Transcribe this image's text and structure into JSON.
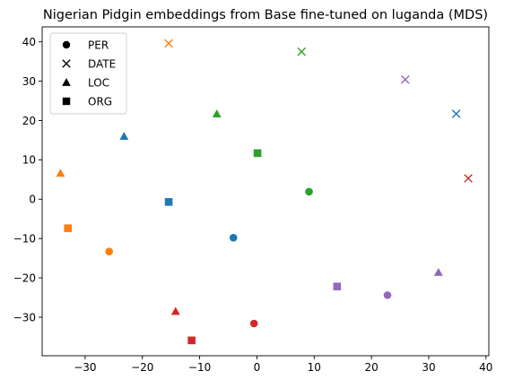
{
  "chart_data": {
    "type": "scatter",
    "title": "Nigerian Pidgin embeddings from Base fine-tuned on luganda (MDS)",
    "xlabel": "",
    "ylabel": "",
    "xlim": [
      -37.5,
      40.5
    ],
    "ylim": [
      -39.8,
      43.8
    ],
    "xticks": [
      -30,
      -20,
      -10,
      0,
      10,
      20,
      30,
      40
    ],
    "yticks": [
      -30,
      -20,
      -10,
      0,
      10,
      20,
      30,
      40
    ],
    "grid": false,
    "legend_placement": "top-left",
    "legend": [
      {
        "label": "PER",
        "marker": "circle"
      },
      {
        "label": "DATE",
        "marker": "x"
      },
      {
        "label": "LOC",
        "marker": "triangle"
      },
      {
        "label": "ORG",
        "marker": "square"
      }
    ],
    "colors": {
      "blue": "#1f77b4",
      "orange": "#ff7f0e",
      "green": "#2ca02c",
      "red": "#d62728",
      "purple": "#9467bd"
    },
    "points": [
      {
        "x": -15.4,
        "y": 39.6,
        "marker": "x",
        "color": "orange"
      },
      {
        "x": 7.8,
        "y": 37.5,
        "marker": "x",
        "color": "green"
      },
      {
        "x": 25.9,
        "y": 30.4,
        "marker": "x",
        "color": "purple"
      },
      {
        "x": 34.8,
        "y": 21.7,
        "marker": "x",
        "color": "blue"
      },
      {
        "x": 36.9,
        "y": 5.3,
        "marker": "x",
        "color": "red"
      },
      {
        "x": -7.0,
        "y": 21.7,
        "marker": "triangle",
        "color": "green"
      },
      {
        "x": -23.2,
        "y": 16.0,
        "marker": "triangle",
        "color": "blue"
      },
      {
        "x": -34.3,
        "y": 6.6,
        "marker": "triangle",
        "color": "orange"
      },
      {
        "x": 31.7,
        "y": -18.6,
        "marker": "triangle",
        "color": "purple"
      },
      {
        "x": -14.2,
        "y": -28.5,
        "marker": "triangle",
        "color": "red"
      },
      {
        "x": 0.1,
        "y": 11.7,
        "marker": "square",
        "color": "green"
      },
      {
        "x": -15.4,
        "y": -0.7,
        "marker": "square",
        "color": "blue"
      },
      {
        "x": -33.0,
        "y": -7.4,
        "marker": "square",
        "color": "orange"
      },
      {
        "x": 14.0,
        "y": -22.2,
        "marker": "square",
        "color": "purple"
      },
      {
        "x": -11.4,
        "y": -35.9,
        "marker": "square",
        "color": "red"
      },
      {
        "x": 9.1,
        "y": 1.9,
        "marker": "circle",
        "color": "green"
      },
      {
        "x": -4.1,
        "y": -9.8,
        "marker": "circle",
        "color": "blue"
      },
      {
        "x": -25.8,
        "y": -13.3,
        "marker": "circle",
        "color": "orange"
      },
      {
        "x": 22.8,
        "y": -24.4,
        "marker": "circle",
        "color": "purple"
      },
      {
        "x": -0.5,
        "y": -31.6,
        "marker": "circle",
        "color": "red"
      }
    ]
  }
}
